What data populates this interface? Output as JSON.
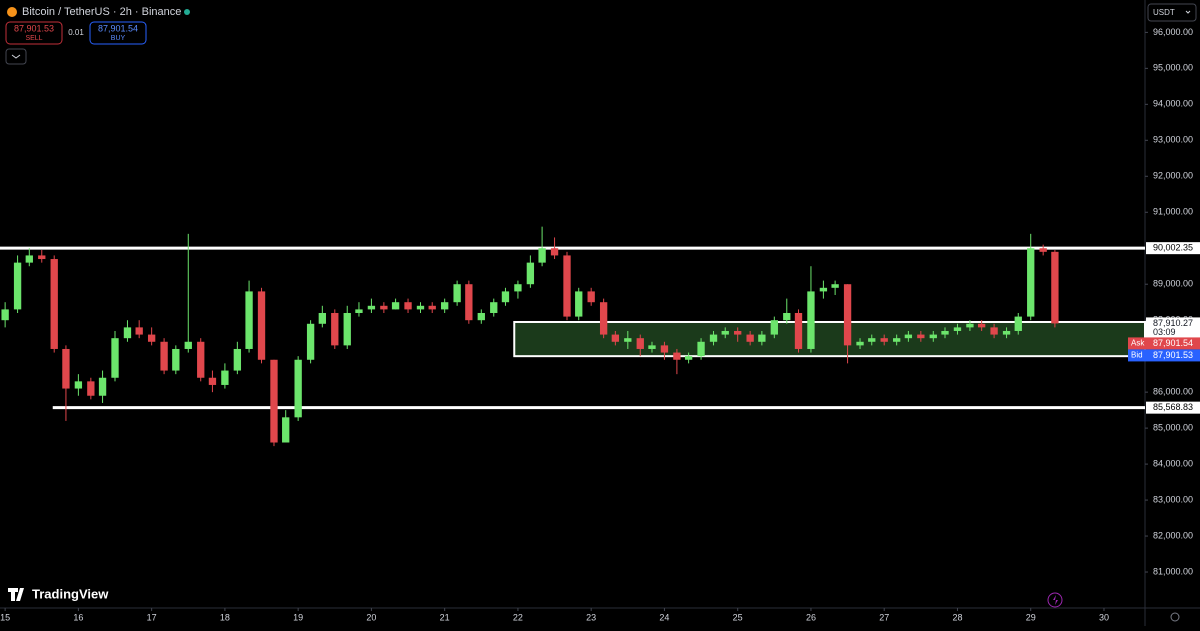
{
  "header": {
    "symbol": "Bitcoin / TetherUS · 2h · Binance",
    "sell_label": "SELL",
    "spread": "0.01",
    "buy_label": "BUY",
    "currency": "USDT",
    "brand": "TradingView"
  },
  "chart_data": {
    "type": "candlestick",
    "x": [
      15,
      15.17,
      15.33,
      15.5,
      15.67,
      15.83,
      16,
      16.17,
      16.33,
      16.5,
      16.67,
      16.83,
      17,
      17.17,
      17.33,
      17.5,
      17.67,
      17.83,
      18,
      18.17,
      18.33,
      18.5,
      18.67,
      18.83,
      19,
      19.17,
      19.33,
      19.5,
      19.67,
      19.83,
      20,
      20.17,
      20.33,
      20.5,
      20.67,
      20.83,
      21,
      21.17,
      21.33,
      21.5,
      21.67,
      21.83,
      22,
      22.17,
      22.33,
      22.5,
      22.67,
      22.83,
      23,
      23.17,
      23.33,
      23.5,
      23.67,
      23.83,
      24,
      24.17,
      24.33,
      24.5,
      24.67,
      24.83,
      25,
      25.17,
      25.33,
      25.5,
      25.67,
      25.83,
      26,
      26.17,
      26.33,
      26.5,
      26.67,
      26.83,
      27,
      27.17,
      27.33,
      27.5,
      27.67,
      27.83,
      28,
      28.17,
      28.33,
      28.5,
      28.67,
      28.83,
      29,
      29.17,
      29.33
    ],
    "open": [
      88000,
      88300,
      89600,
      89800,
      89700,
      87200,
      86100,
      86300,
      85900,
      86400,
      87500,
      87800,
      87600,
      87400,
      86600,
      87200,
      87400,
      86400,
      86200,
      86600,
      87200,
      88800,
      86900,
      84600,
      85300,
      86900,
      87900,
      88200,
      87300,
      88200,
      88300,
      88400,
      88300,
      88500,
      88300,
      88400,
      88300,
      88500,
      89000,
      88000,
      88200,
      88500,
      88800,
      89000,
      89600,
      90000,
      89800,
      88100,
      88800,
      88500,
      87600,
      87400,
      87500,
      87200,
      87300,
      87100,
      86900,
      87000,
      87400,
      87600,
      87700,
      87600,
      87400,
      87600,
      88000,
      88200,
      87200,
      88800,
      88900,
      89000,
      87300,
      87400,
      87500,
      87400,
      87500,
      87600,
      87500,
      87600,
      87700,
      87800,
      87900,
      87800,
      87600,
      87700,
      88100,
      90000,
      89900
    ],
    "high": [
      88500,
      89800,
      90000,
      89950,
      89800,
      87300,
      86500,
      86400,
      86600,
      87700,
      88000,
      88000,
      87800,
      87500,
      87300,
      90400,
      87500,
      86600,
      86800,
      87400,
      89100,
      88900,
      86900,
      85500,
      87000,
      88000,
      88400,
      88300,
      88400,
      88500,
      88600,
      88500,
      88600,
      88600,
      88500,
      88500,
      88600,
      89100,
      89100,
      88300,
      88600,
      88900,
      89100,
      89800,
      90600,
      90300,
      89900,
      88900,
      88900,
      88600,
      87700,
      87700,
      87600,
      87400,
      87400,
      87200,
      87100,
      87500,
      87700,
      87800,
      87800,
      87700,
      87700,
      88100,
      88600,
      88300,
      89500,
      89100,
      89100,
      89000,
      87500,
      87600,
      87600,
      87600,
      87700,
      87700,
      87700,
      87800,
      87900,
      88000,
      88000,
      87900,
      87800,
      88200,
      90400,
      90100,
      89950
    ],
    "low": [
      87800,
      88200,
      89500,
      89600,
      87100,
      85200,
      85900,
      85800,
      85700,
      86300,
      87400,
      87500,
      87300,
      86500,
      86500,
      87100,
      86300,
      86000,
      86100,
      86500,
      87100,
      86800,
      84500,
      84600,
      85200,
      86800,
      87800,
      87200,
      87200,
      88100,
      88200,
      88200,
      88300,
      88200,
      88200,
      88200,
      88200,
      88400,
      87900,
      87900,
      88100,
      88400,
      88600,
      88900,
      89500,
      89700,
      88000,
      88000,
      88400,
      87500,
      87300,
      87200,
      87000,
      87100,
      86900,
      86500,
      86800,
      86900,
      87300,
      87500,
      87400,
      87300,
      87300,
      87500,
      87900,
      87100,
      87100,
      88600,
      88700,
      86800,
      87200,
      87300,
      87300,
      87300,
      87400,
      87400,
      87400,
      87500,
      87600,
      87700,
      87700,
      87500,
      87500,
      87600,
      88000,
      89800,
      87800
    ],
    "close": [
      88300,
      89600,
      89800,
      89700,
      87200,
      86100,
      86300,
      85900,
      86400,
      87500,
      87800,
      87600,
      87400,
      86600,
      87200,
      87400,
      86400,
      86200,
      86600,
      87200,
      88800,
      86900,
      84600,
      85300,
      86900,
      87900,
      88200,
      87300,
      88200,
      88300,
      88400,
      88300,
      88500,
      88300,
      88400,
      88300,
      88500,
      89000,
      88000,
      88200,
      88500,
      88800,
      89000,
      89600,
      90000,
      89800,
      88100,
      88800,
      88500,
      87600,
      87400,
      87500,
      87200,
      87300,
      87100,
      86900,
      87000,
      87400,
      87600,
      87700,
      87600,
      87400,
      87600,
      88000,
      88200,
      87200,
      88800,
      88900,
      89000,
      87300,
      87400,
      87500,
      87400,
      87500,
      87600,
      87500,
      87600,
      87700,
      87800,
      87900,
      87800,
      87600,
      87700,
      88100,
      90000,
      89900,
      87910.27
    ],
    "up_color": "#6ce56c",
    "down_color": "#e0474c",
    "xlim": [
      14.93,
      30.56
    ],
    "ylim": [
      80000,
      96900
    ],
    "xticks": [
      15,
      16,
      17,
      18,
      19,
      20,
      21,
      22,
      23,
      24,
      25,
      26,
      27,
      28,
      29,
      30
    ],
    "yticks": [
      {
        "value": 96000,
        "label": "96,000.00"
      },
      {
        "value": 95000,
        "label": "95,000.00"
      },
      {
        "value": 94000,
        "label": "94,000.00"
      },
      {
        "value": 93000,
        "label": "93,000.00"
      },
      {
        "value": 92000,
        "label": "92,000.00"
      },
      {
        "value": 91000,
        "label": "91,000.00"
      },
      {
        "value": 89000,
        "label": "89,000.00"
      },
      {
        "value": 88000,
        "label": "88,000.00"
      },
      {
        "value": 87000,
        "label": "87,000.00"
      },
      {
        "value": 86000,
        "label": "86,000.00"
      },
      {
        "value": 85000,
        "label": "85,000.00"
      },
      {
        "value": 84000,
        "label": "84,000.00"
      },
      {
        "value": 83000,
        "label": "83,000.00"
      },
      {
        "value": 82000,
        "label": "82,000.00"
      },
      {
        "value": 81000,
        "label": "81,000.00"
      }
    ],
    "levels": [
      {
        "value": 90002.35,
        "label": "90,002.35",
        "start": 14.93
      },
      {
        "value": 85568.83,
        "label": "85,568.83",
        "start": 15.65
      }
    ],
    "zone": {
      "low": 87000,
      "high": 87950,
      "start": 21.95,
      "color": "#1b3a1b"
    },
    "last_price": {
      "value": 87910.27,
      "label": "87,910.27",
      "countdown": "03:09"
    },
    "ask": {
      "name": "Ask",
      "value": 87901.54,
      "label": "87,901.54"
    },
    "bid": {
      "name": "Bid",
      "value": 87901.53,
      "label": "87,901.53"
    }
  }
}
